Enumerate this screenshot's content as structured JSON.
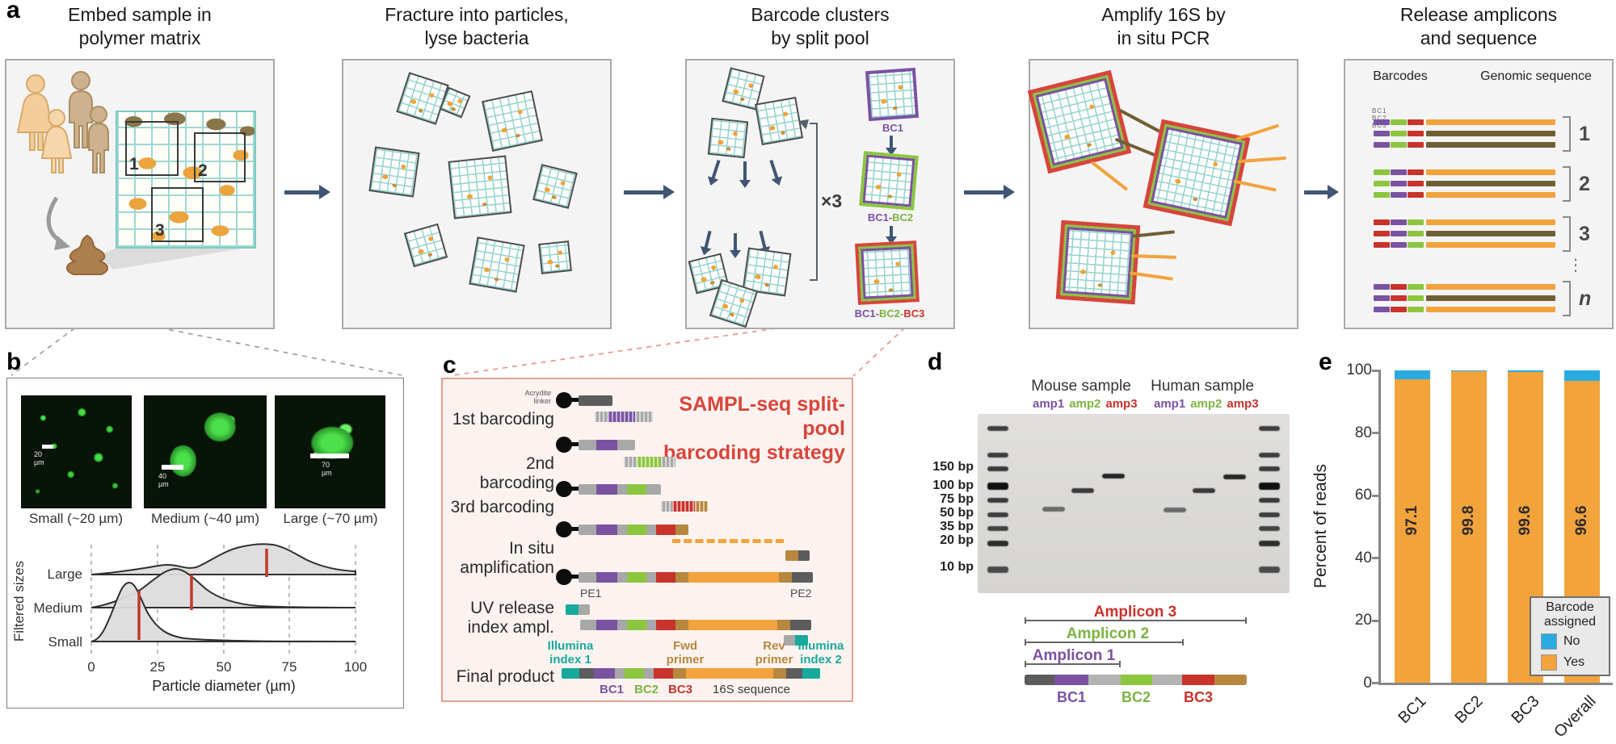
{
  "colors": {
    "orange": "#F2A33C",
    "purple": "#7A52A1",
    "green": "#8CC63F",
    "red": "#C8332B",
    "teal": "#18A99D",
    "blue": "#29ABE2",
    "tan": "#B7873E",
    "olive": "#6F6034",
    "arrow_slate": "#3F5573",
    "accent_red": "#D9453A",
    "salmon_dash": "#E89B8A"
  },
  "panel_a": {
    "label": "a",
    "steps": [
      {
        "l1": "Embed sample in",
        "l2": "polymer matrix"
      },
      {
        "l1": "Fracture into particles,",
        "l2": "lyse bacteria"
      },
      {
        "l1": "Barcode clusters",
        "l2": "by split pool"
      },
      {
        "l1": "Amplify 16S by",
        "l2": "in situ PCR"
      },
      {
        "l1": "Release amplicons",
        "l2": "and sequence"
      }
    ],
    "box1": {
      "regions": [
        "1",
        "2",
        "3"
      ]
    },
    "box3": {
      "x3": "×3",
      "p1": "BC1",
      "p2a": "BC1-",
      "p2b": "BC2",
      "p3a": "BC1-",
      "p3b": "BC2-",
      "p3c": "BC3"
    },
    "box5": {
      "barcodes": "Barcodes",
      "genomic": "Genomic sequence",
      "tiny": "BC1 BC2 BC3",
      "g1": "1",
      "g2": "2",
      "g3": "3",
      "gn": "n",
      "dots": "⋮"
    }
  },
  "panel_b": {
    "label": "b",
    "images": [
      {
        "caption": "Small (~20 µm)",
        "scale": "20 µm"
      },
      {
        "caption": "Medium (~40 µm)",
        "scale": "40 µm"
      },
      {
        "caption": "Large (~70 µm)",
        "scale": "70 µm"
      }
    ],
    "chart_data": {
      "type": "area",
      "variant": "ridgeline",
      "ylabel": "Filtered sizes",
      "xlabel": "Particle diameter (µm)",
      "rows": [
        "Large",
        "Medium",
        "Small"
      ],
      "xticks": [
        "0",
        "25",
        "50",
        "75",
        "100"
      ],
      "xlim": [
        0,
        100
      ],
      "median_diameter_um": {
        "Small": 18,
        "Medium": 38,
        "Large": 66
      },
      "peak_diameter_um": {
        "Small": 16,
        "Medium": 35,
        "Large": 70
      },
      "grid": "dashed-vertical",
      "legend": "none"
    }
  },
  "panel_c": {
    "label": "c",
    "title_l1": "SAMPL-seq split-pool",
    "title_l2": "barcoding strategy",
    "acrydite_l1": "Acrydite",
    "acrydite_l2": "linker",
    "step1": "1st barcoding",
    "step2": "2nd barcoding",
    "step3": "3rd barcoding",
    "step4_l1": "In situ",
    "step4_l2": "amplification",
    "step5_l1": "UV release",
    "step5_l2": "index ampl.",
    "step6": "Final product",
    "pe1": "PE1",
    "pe2": "PE2",
    "ill1_l1": "Illumina",
    "ill1_l2": "index 1",
    "fwd_l1": "Fwd",
    "fwd_l2": "primer",
    "rev_l1": "Rev",
    "rev_l2": "primer",
    "ill2_l1": "Illumina",
    "ill2_l2": "index 2",
    "bc1": "BC1",
    "bc2": "BC2",
    "bc3": "BC3",
    "s16": "16S sequence"
  },
  "panel_d": {
    "label": "d",
    "mouse": "Mouse sample",
    "human": "Human sample",
    "amp1": "amp1",
    "amp2": "amp2",
    "amp3": "amp3",
    "ladder": [
      "150 bp",
      "100 bp",
      "75 bp",
      "50 bp",
      "35 bp",
      "20 bp",
      "10 bp"
    ],
    "amplicon1": "Amplicon 1",
    "amplicon2": "Amplicon 2",
    "amplicon3": "Amplicon 3",
    "bc1": "BC1",
    "bc2": "BC2",
    "bc3": "BC3"
  },
  "panel_e": {
    "label": "e",
    "chart_data": {
      "type": "bar",
      "stacked": true,
      "categories": [
        "BC1",
        "BC2",
        "BC3",
        "Overall"
      ],
      "series": [
        {
          "name": "Yes",
          "color": "#F2A33C",
          "values": [
            97.1,
            99.8,
            99.6,
            96.6
          ]
        },
        {
          "name": "No",
          "color": "#29ABE2",
          "values": [
            2.9,
            0.2,
            0.4,
            3.4
          ]
        }
      ],
      "bar_labels": [
        "97.1",
        "99.8",
        "99.6",
        "96.6"
      ],
      "ylabel": "Percent of reads",
      "yticks": [
        "0",
        "20",
        "40",
        "60",
        "80",
        "100"
      ],
      "ylim": [
        0,
        100
      ],
      "legend_title_l1": "Barcode",
      "legend_title_l2": "assigned",
      "legend_no": "No",
      "legend_yes": "Yes",
      "legend_position": "bottom-right"
    }
  }
}
